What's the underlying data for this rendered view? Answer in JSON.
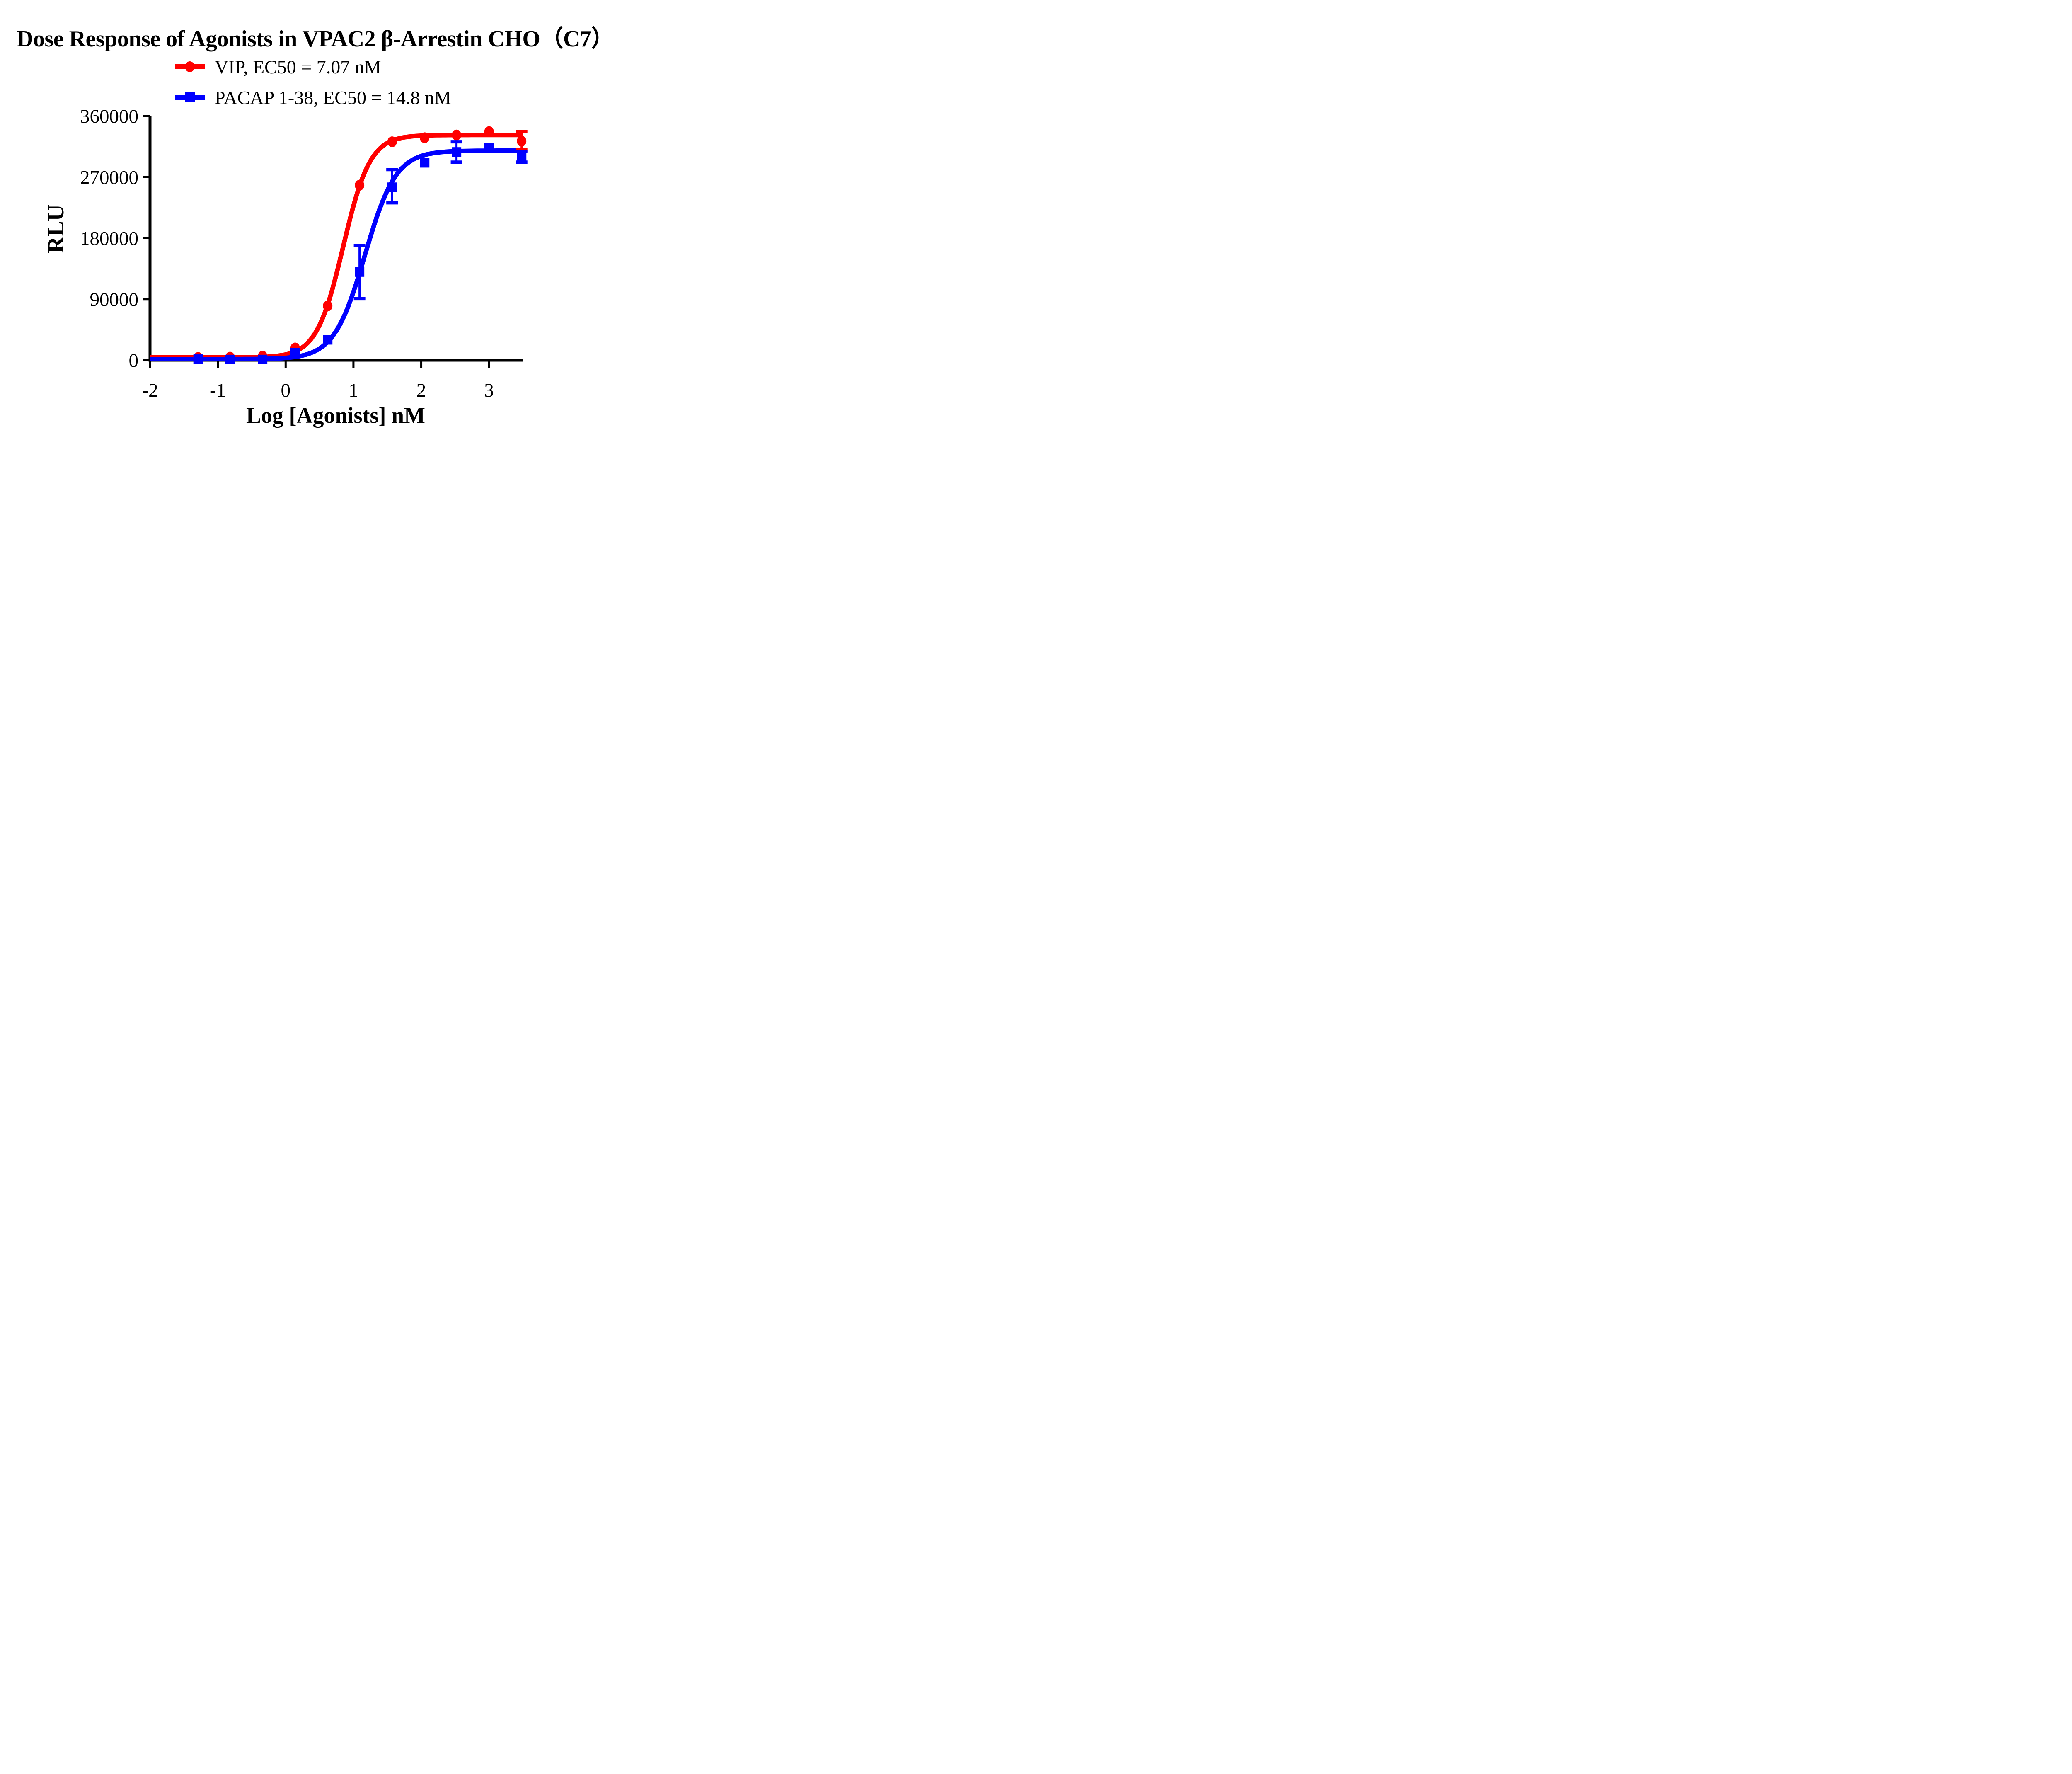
{
  "chart_data": {
    "type": "line",
    "title": "Dose Response of Agonists in VPAC2 β-Arrestin CHO（C7）",
    "xlabel": "Log [Agonists] nM",
    "ylabel": "RLU",
    "xlim": [
      -2,
      3.5
    ],
    "ylim": [
      0,
      360000
    ],
    "xticks": [
      -2,
      -1,
      0,
      1,
      2,
      3
    ],
    "yticks": [
      0,
      90000,
      180000,
      270000,
      360000
    ],
    "grid": false,
    "background_color": "#ffffff",
    "axis_color": "#000000",
    "legend_position": "top-center",
    "series": [
      {
        "name": "VIP, EC50 = 7.07 nM",
        "ec50_nM": 7.07,
        "color": "#ff0000",
        "marker": "circle",
        "x": [
          -1.29,
          -0.82,
          -0.34,
          0.14,
          0.62,
          1.09,
          1.57,
          2.05,
          2.52,
          3.0,
          3.48
        ],
        "y": [
          4000,
          4500,
          6000,
          18000,
          80000,
          258000,
          322000,
          328000,
          332000,
          337000,
          323000
        ],
        "yerr": [
          null,
          null,
          null,
          null,
          null,
          null,
          null,
          null,
          null,
          null,
          [
            13000,
            14000
          ]
        ],
        "fit": {
          "bottom": 4000,
          "top": 332000,
          "log_ec50": 0.85,
          "hill": 2.2
        }
      },
      {
        "name": "PACAP 1-38, EC50 = 14.8 nM",
        "ec50_nM": 14.8,
        "color": "#0000ff",
        "marker": "square",
        "x": [
          -1.29,
          -0.82,
          -0.34,
          0.14,
          0.62,
          1.09,
          1.57,
          2.05,
          2.52,
          3.0,
          3.48
        ],
        "y": [
          1500,
          1000,
          1000,
          11000,
          30000,
          130000,
          255000,
          291000,
          307000,
          313000,
          300000
        ],
        "yerr": [
          null,
          null,
          null,
          null,
          null,
          [
            39000,
            39000
          ],
          [
            23000,
            26000
          ],
          null,
          [
            15000,
            15000
          ],
          null,
          [
            8000,
            8000
          ]
        ],
        "fit": {
          "bottom": 1500,
          "top": 309000,
          "log_ec50": 1.17,
          "hill": 1.9
        }
      }
    ]
  }
}
